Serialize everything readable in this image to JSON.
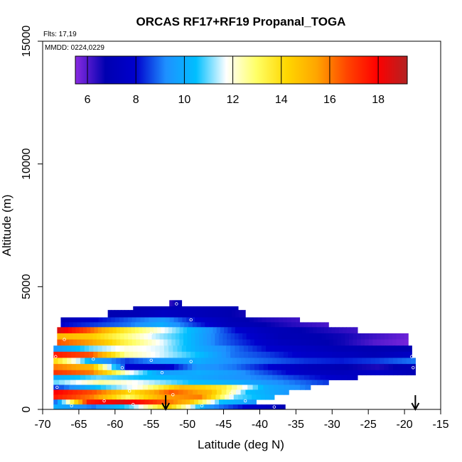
{
  "chart_data": {
    "type": "heatmap",
    "title": "ORCAS RF17+RF19 Propanal_TOGA",
    "flights_note": "Flts: 17,19",
    "date_note": "MMDD: 0224,0229",
    "xlabel": "Latitude (deg N)",
    "ylabel": "Altitude (m)",
    "xlim": [
      -70,
      -15
    ],
    "ylim": [
      0,
      15000
    ],
    "x_ticks": [
      -70,
      -65,
      -60,
      -55,
      -50,
      -45,
      -40,
      -35,
      -30,
      -25,
      -20,
      -15
    ],
    "x_tick_labels": [
      "-70",
      "-65",
      "-60",
      "-55",
      "-50",
      "-45",
      "-40",
      "-35",
      "-30",
      "-25",
      "-20",
      "-15"
    ],
    "y_ticks": [
      0,
      5000,
      10000,
      15000
    ],
    "y_tick_labels": [
      "0",
      "5000",
      "10000",
      "15000"
    ],
    "colorbar": {
      "vmin": 5.5,
      "vmax": 19.2,
      "ticks": [
        6,
        8,
        10,
        12,
        14,
        16,
        18
      ],
      "tick_labels": [
        "6",
        "8",
        "10",
        "12",
        "14",
        "16",
        "18"
      ],
      "colors": [
        "#8a2be2",
        "#0000b0",
        "#0000cd",
        "#1e90ff",
        "#00bfff",
        "#ffffff",
        "#ffff66",
        "#ffd700",
        "#ffa500",
        "#ff4500",
        "#ff0000",
        "#b22222"
      ]
    },
    "arrows_at_lat": [
      -53,
      -18.5
    ],
    "bands": [
      {
        "alt_min": 4200,
        "alt_max": 4450,
        "lat_min": -52.5,
        "lat_max": -50.8,
        "values": [
          6.3,
          7.0
        ]
      },
      {
        "alt_min": 4050,
        "alt_max": 4200,
        "lat_min": -57.5,
        "lat_max": -43.0,
        "values": [
          6.8,
          7.0,
          7.2,
          7.0,
          6.9
        ]
      },
      {
        "alt_min": 3750,
        "alt_max": 4050,
        "lat_min": -61.0,
        "lat_max": -42.0,
        "values": [
          6.8,
          7.0,
          7.5,
          7.2,
          6.9,
          6.6
        ]
      },
      {
        "alt_min": 3550,
        "alt_max": 3750,
        "lat_min": -67.5,
        "lat_max": -34.5,
        "values": [
          7.0,
          8.0,
          8.8,
          9.5,
          8.0,
          7.0,
          6.5,
          6.2
        ]
      },
      {
        "alt_min": 3350,
        "alt_max": 3550,
        "lat_min": -67.5,
        "lat_max": -30.5,
        "values": [
          8.0,
          8.5,
          9.0,
          10.0,
          8.5,
          7.2,
          6.8,
          6.4,
          6.1
        ]
      },
      {
        "alt_min": 3100,
        "alt_max": 3350,
        "lat_min": -68.0,
        "lat_max": -26.5,
        "values": [
          18.5,
          16.5,
          14.0,
          12.5,
          11.0,
          9.5,
          8.0,
          7.2,
          6.8,
          6.5,
          6.2
        ]
      },
      {
        "alt_min": 2850,
        "alt_max": 3100,
        "lat_min": -68.0,
        "lat_max": -19.5,
        "values": [
          15.0,
          14.5,
          13.0,
          11.5,
          10.5,
          9.0,
          8.0,
          7.0,
          6.8,
          6.6,
          6.2,
          5.8
        ]
      },
      {
        "alt_min": 2600,
        "alt_max": 2850,
        "lat_min": -68.0,
        "lat_max": -19.5,
        "values": [
          16.5,
          15.5,
          13.5,
          12.0,
          10.5,
          9.0,
          8.2,
          7.3,
          6.9,
          6.6,
          6.0,
          5.7
        ]
      },
      {
        "alt_min": 2350,
        "alt_max": 2600,
        "lat_min": -68.5,
        "lat_max": -19.0,
        "values": [
          9.5,
          11.0,
          12.0,
          11.5,
          10.0,
          9.0,
          8.0,
          7.5,
          7.0,
          6.8,
          6.8
        ]
      },
      {
        "alt_min": 2100,
        "alt_max": 2350,
        "lat_min": -68.5,
        "lat_max": -19.0,
        "values": [
          17.5,
          16.5,
          12.5,
          11.5,
          10.5,
          9.0,
          8.5,
          7.8,
          7.4,
          7.0,
          7.6
        ]
      },
      {
        "alt_min": 1850,
        "alt_max": 2100,
        "lat_min": -68.5,
        "lat_max": -18.5,
        "values": [
          14.0,
          10.0,
          8.5,
          9.5,
          10.0,
          9.2,
          8.8,
          8.4,
          8.2,
          8.5,
          9.0
        ]
      },
      {
        "alt_min": 1600,
        "alt_max": 1850,
        "lat_min": -68.5,
        "lat_max": -18.5,
        "values": [
          16.0,
          15.0,
          8.0,
          7.5,
          9.5,
          9.0,
          8.0,
          7.2,
          6.8,
          6.5,
          7.0
        ]
      },
      {
        "alt_min": 1400,
        "alt_max": 1600,
        "lat_min": -68.5,
        "lat_max": -18.5,
        "values": [
          17.0,
          16.0,
          12.0,
          9.5,
          10.0,
          9.5,
          8.5,
          7.5,
          7.2,
          7.8,
          7.0
        ]
      },
      {
        "alt_min": 1200,
        "alt_max": 1400,
        "lat_min": -68.5,
        "lat_max": -26.5,
        "values": [
          10.0,
          11.0,
          10.5,
          10.0,
          9.5,
          9.0,
          8.2,
          7.5
        ]
      },
      {
        "alt_min": 1000,
        "alt_max": 1200,
        "lat_min": -68.5,
        "lat_max": -30.5,
        "values": [
          11.0,
          12.5,
          11.5,
          10.5,
          10.0,
          9.2,
          8.5
        ]
      },
      {
        "alt_min": 800,
        "alt_max": 1000,
        "lat_min": -68.5,
        "lat_max": -33.0,
        "values": [
          8.5,
          10.5,
          12.0,
          15.0,
          13.5,
          10.0,
          9.0
        ]
      },
      {
        "alt_min": 600,
        "alt_max": 800,
        "lat_min": -68.5,
        "lat_max": -36.0,
        "values": [
          18.0,
          16.5,
          14.0,
          16.5,
          15.0,
          10.5,
          9.5
        ]
      },
      {
        "alt_min": 400,
        "alt_max": 600,
        "lat_min": -68.5,
        "lat_max": -38.0,
        "values": [
          17.5,
          16.0,
          13.0,
          15.5,
          16.0,
          11.0,
          10.0
        ]
      },
      {
        "alt_min": 200,
        "alt_max": 400,
        "lat_min": -68.5,
        "lat_max": -40.5,
        "values": [
          9.0,
          17.5,
          18.5,
          17.0,
          15.0,
          10.5,
          9.5
        ]
      },
      {
        "alt_min": 0,
        "alt_max": 200,
        "lat_min": -68.5,
        "lat_max": -36.5,
        "values": [
          10.0,
          9.0,
          11.0,
          14.5,
          9.5,
          8.0,
          7.0
        ]
      }
    ],
    "sample_points": [
      {
        "lat": -51.5,
        "alt": 4300
      },
      {
        "lat": -49.5,
        "alt": 3650
      },
      {
        "lat": -55.0,
        "alt": 3100
      },
      {
        "lat": -67.0,
        "alt": 2850
      },
      {
        "lat": -68.2,
        "alt": 2150
      },
      {
        "lat": -63.0,
        "alt": 2050
      },
      {
        "lat": -55.0,
        "alt": 2000
      },
      {
        "lat": -49.5,
        "alt": 1950
      },
      {
        "lat": -59.0,
        "alt": 1700
      },
      {
        "lat": -53.5,
        "alt": 1500
      },
      {
        "lat": -68.0,
        "alt": 900
      },
      {
        "lat": -58.0,
        "alt": 750
      },
      {
        "lat": -52.0,
        "alt": 600
      },
      {
        "lat": -44.0,
        "alt": 650
      },
      {
        "lat": -61.5,
        "alt": 350
      },
      {
        "lat": -57.5,
        "alt": 200
      },
      {
        "lat": -48.0,
        "alt": 150
      },
      {
        "lat": -42.0,
        "alt": 350
      },
      {
        "lat": -19.0,
        "alt": 2150
      },
      {
        "lat": -18.8,
        "alt": 1700
      },
      {
        "lat": -66.0,
        "alt": 150
      },
      {
        "lat": -38.0,
        "alt": 100
      }
    ]
  }
}
